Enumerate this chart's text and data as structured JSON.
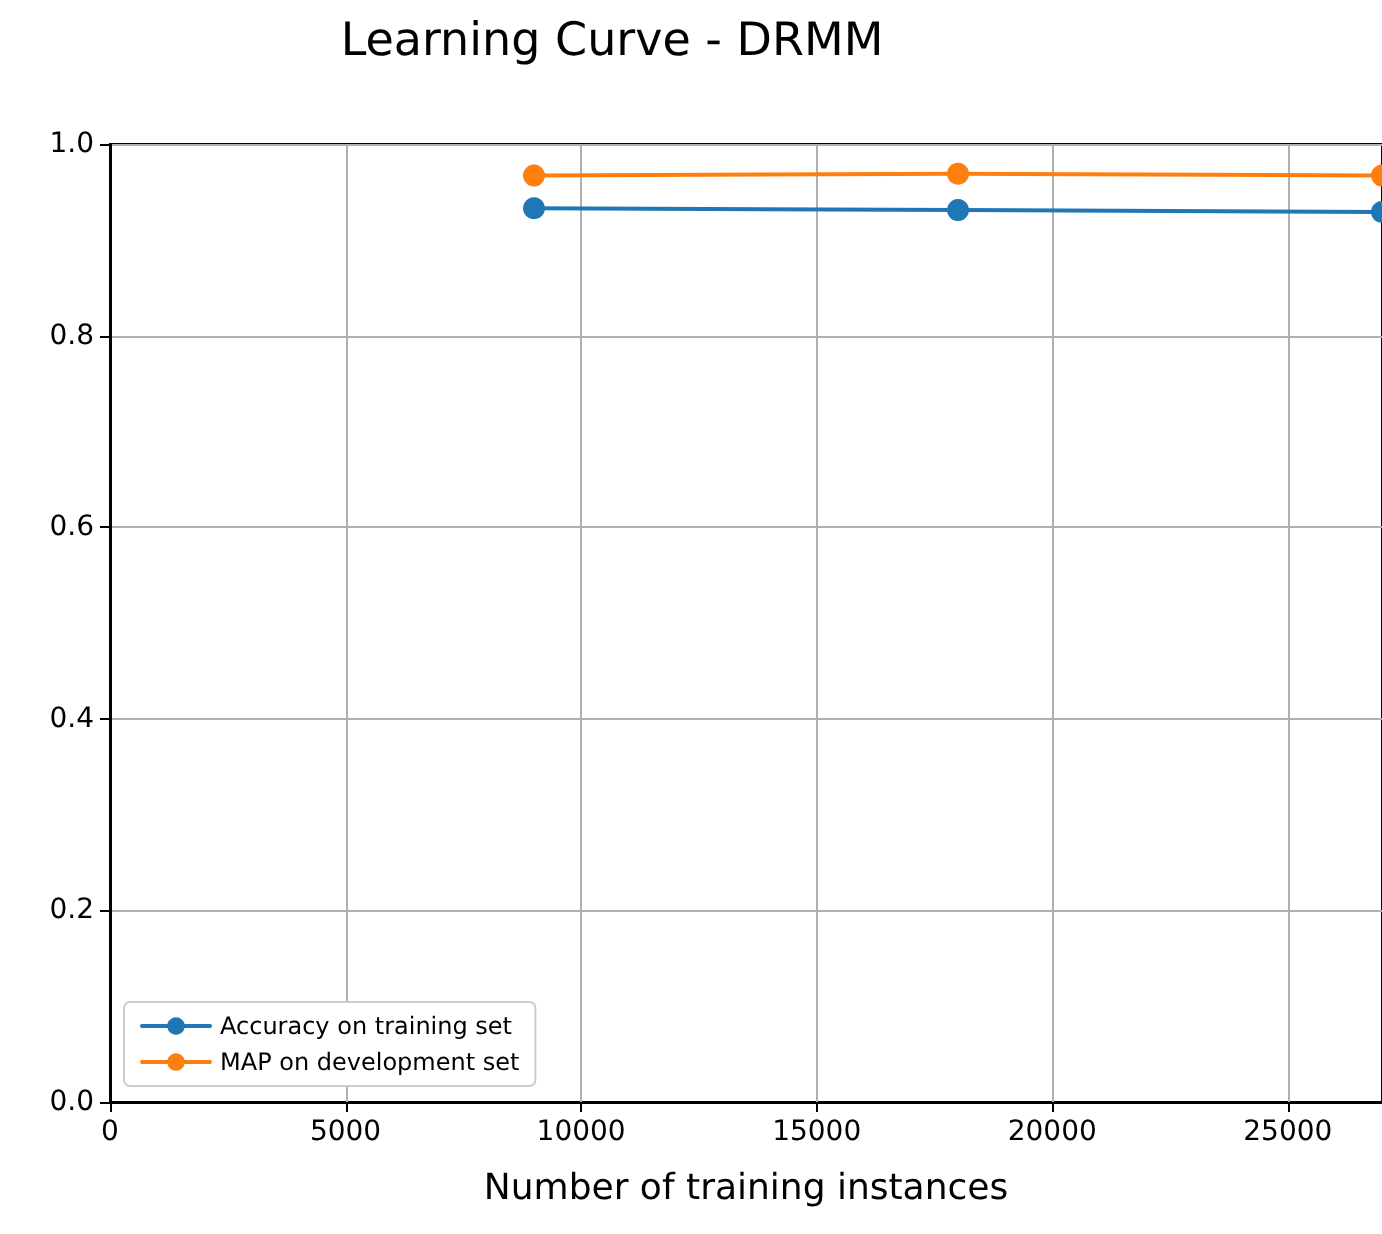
{
  "chart_data": {
    "type": "line",
    "title": "Learning Curve - DRMM",
    "xlabel": "Number of training instances",
    "x": [
      9000,
      18000,
      27000
    ],
    "series": [
      {
        "name": "Accuracy on training set",
        "color": "#1f77b4",
        "values": [
          0.933,
          0.931,
          0.929
        ]
      },
      {
        "name": "MAP on development set",
        "color": "#ff7f0e",
        "values": [
          0.967,
          0.969,
          0.967
        ]
      }
    ],
    "xlim": [
      0,
      27000
    ],
    "xticks": [
      0,
      5000,
      10000,
      15000,
      20000,
      25000
    ],
    "ylim": [
      0,
      1
    ],
    "yticks": [
      {
        "value": 0,
        "label": "0.0"
      },
      {
        "value": 0.2,
        "label": "0.2"
      },
      {
        "value": 0.4,
        "label": "0.4"
      },
      {
        "value": 0.6,
        "label": "0.6"
      },
      {
        "value": 0.8,
        "label": "0.8"
      },
      {
        "value": 1,
        "label": "1.0"
      }
    ],
    "grid": true,
    "legend": "bottom left",
    "marker": "circle",
    "line_style": "solid"
  }
}
